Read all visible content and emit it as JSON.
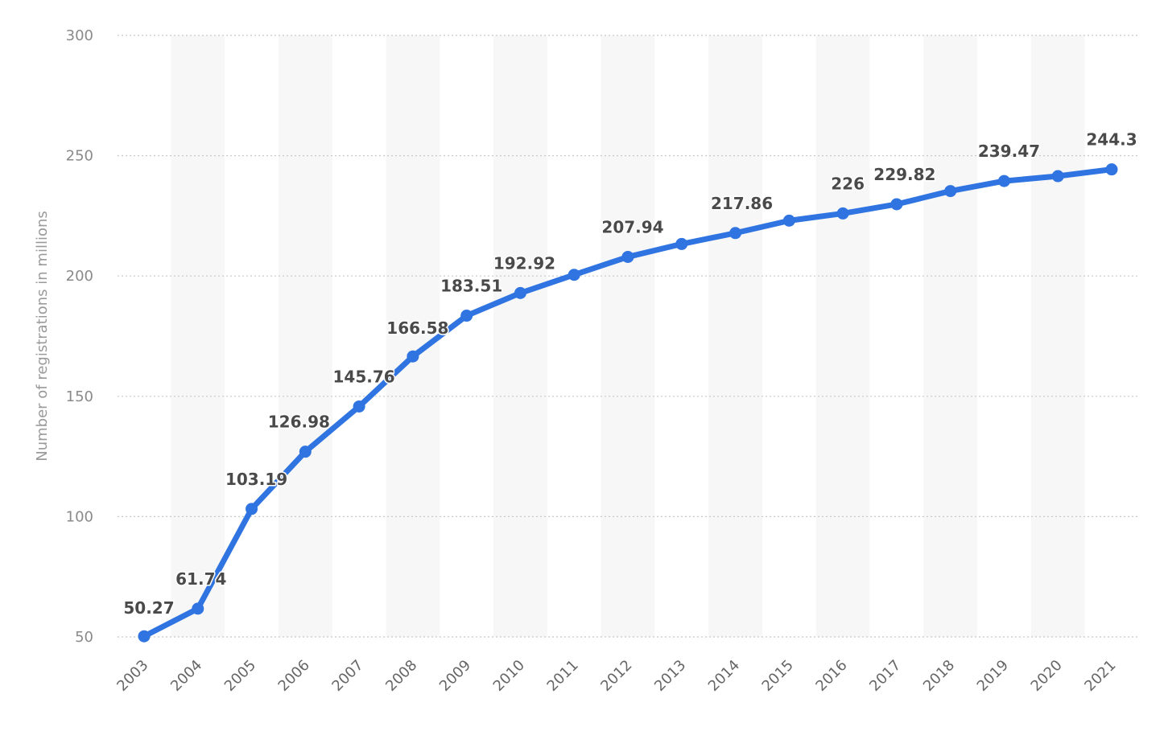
{
  "chart_data": {
    "type": "line",
    "title": "",
    "xlabel": "",
    "ylabel": "Number of registrations in millions",
    "ylim": [
      50,
      300
    ],
    "yticks": [
      50,
      100,
      150,
      200,
      250,
      300
    ],
    "grid": true,
    "categories": [
      "2003",
      "2004",
      "2005",
      "2006",
      "2007",
      "2008",
      "2009",
      "2010",
      "2011",
      "2012",
      "2013",
      "2014",
      "2015",
      "2016",
      "2017",
      "2018",
      "2019",
      "2020",
      "2021"
    ],
    "series": [
      {
        "values": [
          50.27,
          61.74,
          103.19,
          126.98,
          145.76,
          166.58,
          183.51,
          192.92,
          200.5,
          207.94,
          213.3,
          217.86,
          223.0,
          226,
          229.82,
          235.3,
          239.47,
          241.5,
          244.3
        ],
        "data_labels": [
          "50.27",
          "61.74",
          "103.19",
          "126.98",
          "145.76",
          "166.58",
          "183.51",
          "192.92",
          "",
          "207.94",
          "",
          "217.86",
          "",
          "226",
          "229.82",
          "",
          "239.47",
          "",
          "244.3"
        ]
      }
    ],
    "colors": {
      "line": "#2f74e0",
      "band": "#f7f7f8",
      "grid": "#c8c8c8"
    }
  }
}
